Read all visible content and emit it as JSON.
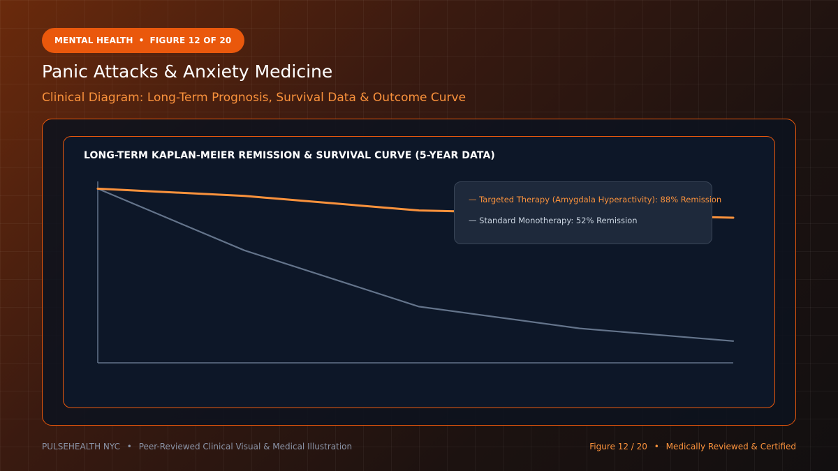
{
  "header": {
    "badge_category": "MENTAL HEALTH",
    "badge_figure": "FIGURE 12 OF 20",
    "badge_separator": "•",
    "title": "Panic Attacks & Anxiety Medicine",
    "subtitle": "Clinical Diagram: Long-Term Prognosis, Survival Data & Outcome Curve"
  },
  "colors": {
    "accent": "#ea580c",
    "accent_light": "#fb923c",
    "series_targeted": "#fb923c",
    "series_standard": "#64748b",
    "panel_bg": "#0d1728"
  },
  "chart_data": {
    "type": "line",
    "title": "LONG-TERM KAPLAN-MEIER REMISSION & SURVIVAL CURVE (5-YEAR DATA)",
    "xlabel": "",
    "ylabel": "",
    "x": [
      0,
      1,
      2,
      3,
      4
    ],
    "ylim": [
      0,
      100
    ],
    "grid": false,
    "legend_position": "top-right",
    "series": [
      {
        "name": "Targeted Therapy (Amygdala Hyperactivity): 88% Remission",
        "legend_text": "— Targeted Therapy (Amygdala Hyperactivity): 88% Remission",
        "color": "#fb923c",
        "values": [
          96,
          92,
          84,
          82,
          80
        ]
      },
      {
        "name": "Standard Monotherapy: 52% Remission",
        "legend_text": "— Standard Monotherapy: 52% Remission",
        "color": "#64748b",
        "values": [
          96,
          62,
          31,
          19,
          12
        ]
      }
    ]
  },
  "footer": {
    "brand": "PULSEHEALTH NYC",
    "tagline": "Peer-Reviewed Clinical Visual & Medical Illustration",
    "figure": "Figure 12 / 20",
    "certification": "Medically Reviewed & Certified",
    "separator": "•"
  }
}
